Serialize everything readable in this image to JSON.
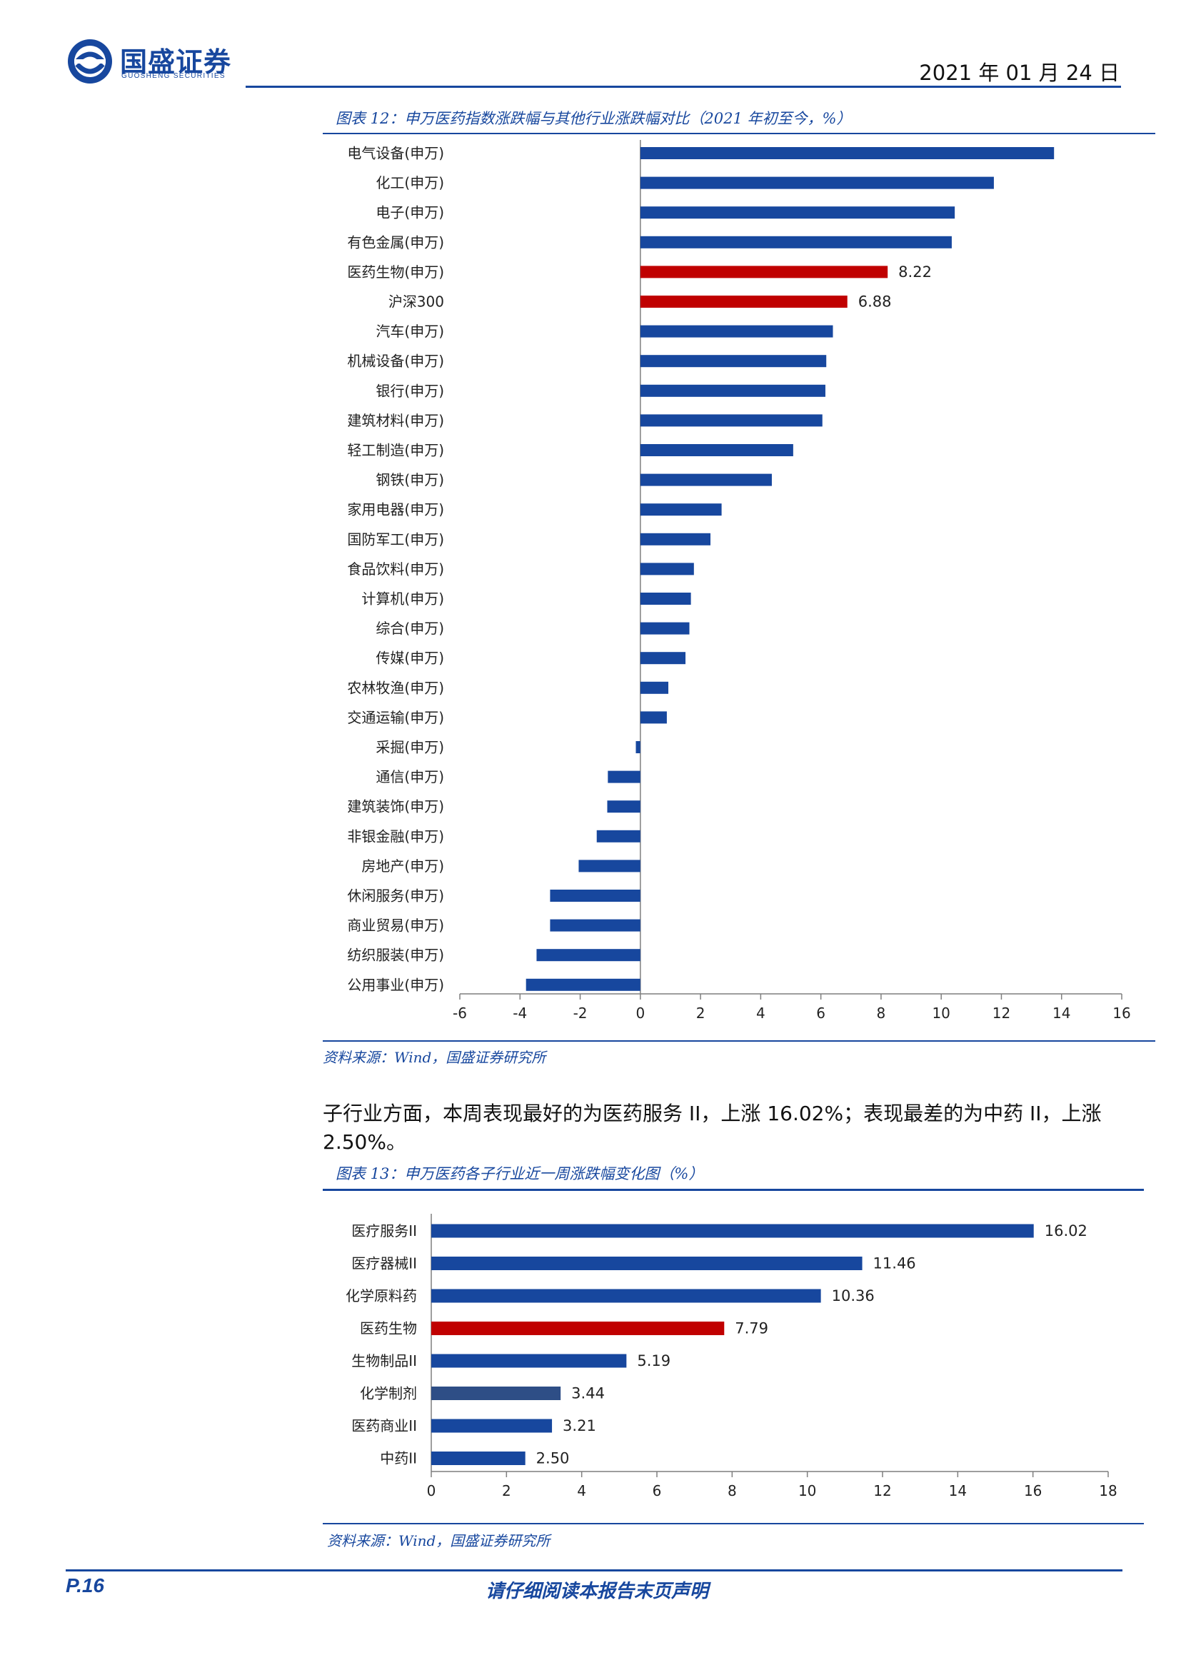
{
  "header": {
    "company_name": "国盛证券",
    "company_name_en": "GUOSHENG SECURITIES",
    "date": "2021 年 01 月 24 日"
  },
  "figure12": {
    "title": "图表 12：申万医药指数涨跌幅与其他行业涨跌幅对比（2021 年初至今，%）",
    "source": "资料来源：Wind，国盛证券研究所"
  },
  "paragraph": "子行业方面，本周表现最好的为医药服务 II，上涨 16.02%；表现最差的为中药 II，上涨 2.50%。",
  "figure13": {
    "title": "图表 13：申万医药各子行业近一周涨跌幅变化图（%）",
    "source": "资料来源：Wind，国盛证券研究所"
  },
  "footer": {
    "page": "P.16",
    "note": "请仔细阅读本报告末页声明"
  },
  "colors": {
    "brand_blue": "#17479e",
    "highlight_red": "#c00000",
    "dark_slate": "#2e4e86"
  },
  "chart_data": [
    {
      "type": "bar",
      "orientation": "horizontal",
      "title": "图表 12：申万医药指数涨跌幅与其他行业涨跌幅对比（2021 年初至今，%）",
      "categories": [
        "电气设备(申万)",
        "化工(申万)",
        "电子(申万)",
        "有色金属(申万)",
        "医药生物(申万)",
        "沪深300",
        "汽车(申万)",
        "机械设备(申万)",
        "银行(申万)",
        "建筑材料(申万)",
        "轻工制造(申万)",
        "钢铁(申万)",
        "家用电器(申万)",
        "国防军工(申万)",
        "食品饮料(申万)",
        "计算机(申万)",
        "综合(申万)",
        "传媒(申万)",
        "农林牧渔(申万)",
        "交通运输(申万)",
        "采掘(申万)",
        "通信(申万)",
        "建筑装饰(申万)",
        "非银金融(申万)",
        "房地产(申万)",
        "休闲服务(申万)",
        "商业贸易(申万)",
        "纺织服装(申万)",
        "公用事业(申万)"
      ],
      "values": [
        13.75,
        11.75,
        10.45,
        10.35,
        8.22,
        6.88,
        6.4,
        6.18,
        6.15,
        6.05,
        5.08,
        4.37,
        2.7,
        2.33,
        1.78,
        1.68,
        1.63,
        1.5,
        0.93,
        0.88,
        -0.15,
        -1.08,
        -1.1,
        -1.45,
        -2.05,
        -3.0,
        -3.0,
        -3.45,
        -3.8
      ],
      "data_labels": [
        null,
        null,
        null,
        null,
        "8.22",
        "6.88",
        null,
        null,
        null,
        null,
        null,
        null,
        null,
        null,
        null,
        null,
        null,
        null,
        null,
        null,
        null,
        null,
        null,
        null,
        null,
        null,
        null,
        null,
        null
      ],
      "highlighted": [
        "医药生物(申万)",
        "沪深300"
      ],
      "xlim": [
        -6,
        16
      ],
      "xticks": [
        "-6",
        "-4",
        "-2",
        "0",
        "2",
        "4",
        "6",
        "8",
        "10",
        "12",
        "14",
        "16"
      ],
      "grid": false
    },
    {
      "type": "bar",
      "orientation": "horizontal",
      "title": "图表 13：申万医药各子行业近一周涨跌幅变化图（%）",
      "categories": [
        "医疗服务II",
        "医疗器械II",
        "化学原料药",
        "医药生物",
        "生物制品II",
        "化学制剂",
        "医药商业II",
        "中药II"
      ],
      "values": [
        16.02,
        11.46,
        10.36,
        7.79,
        5.19,
        3.44,
        3.21,
        2.5
      ],
      "data_labels": [
        "16.02",
        "11.46",
        "10.36",
        "7.79",
        "5.19",
        "3.44",
        "3.21",
        "2.50"
      ],
      "highlighted": [
        "医药生物"
      ],
      "xlim": [
        0,
        18
      ],
      "xticks": [
        "0",
        "2",
        "4",
        "6",
        "8",
        "10",
        "12",
        "14",
        "16",
        "18"
      ],
      "grid": false
    }
  ]
}
